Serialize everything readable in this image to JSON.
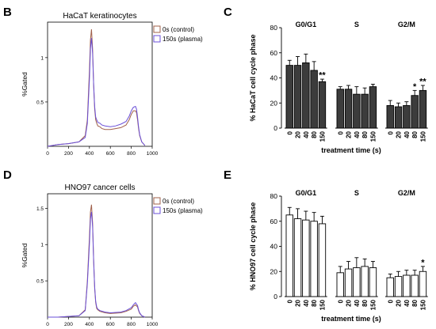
{
  "chart_data": [
    {
      "id": "B",
      "panel_letter": "B",
      "type": "line",
      "title": "HaCaT keratinocytes",
      "ylabel": "%Gated",
      "xlabel": "",
      "xlim": [
        0,
        1000
      ],
      "ylim": [
        0,
        1.4
      ],
      "xticks": [
        0,
        200,
        400,
        600,
        800,
        1000
      ],
      "yticks": [
        0.5,
        1
      ],
      "legend": "top-right",
      "series": [
        {
          "name": "0s (control)",
          "color": "#a0604a",
          "x": [
            0,
            100,
            200,
            300,
            360,
            380,
            400,
            410,
            420,
            430,
            440,
            450,
            460,
            470,
            480,
            500,
            520,
            550,
            600,
            650,
            700,
            750,
            780,
            800,
            820,
            840,
            850,
            860,
            870,
            880,
            900,
            930
          ],
          "y": [
            0,
            0.02,
            0.03,
            0.05,
            0.12,
            0.3,
            0.85,
            1.2,
            1.32,
            1.1,
            0.7,
            0.42,
            0.3,
            0.26,
            0.23,
            0.22,
            0.2,
            0.19,
            0.19,
            0.2,
            0.21,
            0.24,
            0.3,
            0.36,
            0.4,
            0.4,
            0.38,
            0.3,
            0.2,
            0.12,
            0.05,
            0.01
          ]
        },
        {
          "name": "150s (plasma)",
          "color": "#6a4fd8",
          "x": [
            0,
            100,
            200,
            300,
            360,
            380,
            400,
            410,
            420,
            430,
            440,
            450,
            460,
            470,
            480,
            500,
            520,
            550,
            600,
            650,
            700,
            750,
            780,
            800,
            820,
            840,
            850,
            860,
            870,
            880,
            900,
            930
          ],
          "y": [
            0,
            0.02,
            0.03,
            0.05,
            0.1,
            0.26,
            0.75,
            1.1,
            1.22,
            1.05,
            0.7,
            0.45,
            0.33,
            0.3,
            0.27,
            0.26,
            0.24,
            0.23,
            0.22,
            0.23,
            0.25,
            0.28,
            0.34,
            0.4,
            0.44,
            0.45,
            0.42,
            0.33,
            0.22,
            0.13,
            0.05,
            0.01
          ]
        }
      ]
    },
    {
      "id": "C",
      "panel_letter": "C",
      "type": "bar",
      "ylabel": "% HaCaT cell cycle phase",
      "xlabel": "treatment time (s)",
      "ylim": [
        0,
        80
      ],
      "yticks": [
        0,
        20,
        40,
        60,
        80
      ],
      "bar_color": "#3c3c3c",
      "groups": [
        {
          "name": "G0/G1",
          "categories": [
            "0",
            "20",
            "40",
            "80",
            "150"
          ],
          "values": [
            50,
            50,
            52,
            46,
            37
          ],
          "errors": [
            4,
            7,
            7,
            7,
            2
          ],
          "annotations": [
            "",
            "",
            "",
            "",
            "**"
          ]
        },
        {
          "name": "S",
          "categories": [
            "0",
            "20",
            "40",
            "80",
            "150"
          ],
          "values": [
            31,
            31,
            27,
            27,
            33
          ],
          "errors": [
            2,
            3,
            6,
            5,
            2
          ],
          "annotations": [
            "",
            "",
            "",
            "",
            ""
          ]
        },
        {
          "name": "G2/M",
          "categories": [
            "0",
            "20",
            "40",
            "80",
            "150"
          ],
          "values": [
            18,
            17,
            18,
            26,
            30
          ],
          "errors": [
            4,
            3,
            3,
            4,
            4
          ],
          "annotations": [
            "",
            "",
            "",
            "*",
            "**"
          ]
        }
      ]
    },
    {
      "id": "D",
      "panel_letter": "D",
      "type": "line",
      "title": "HNO97 cancer cells",
      "ylabel": "%Gated",
      "xlabel": "",
      "xlim": [
        0,
        1000
      ],
      "ylim": [
        0,
        1.7
      ],
      "xticks": [
        0,
        200,
        400,
        600,
        800,
        1000
      ],
      "yticks": [
        0.5,
        1,
        1.5
      ],
      "legend": "top-right",
      "series": [
        {
          "name": "0s (control)",
          "color": "#a0604a",
          "x": [
            0,
            100,
            200,
            300,
            360,
            380,
            400,
            410,
            420,
            430,
            440,
            450,
            460,
            470,
            480,
            500,
            550,
            600,
            700,
            750,
            800,
            820,
            840,
            860,
            870,
            880,
            900,
            930
          ],
          "y": [
            0,
            0,
            0.01,
            0.02,
            0.1,
            0.5,
            1.1,
            1.45,
            1.55,
            1.3,
            0.8,
            0.4,
            0.2,
            0.12,
            0.1,
            0.08,
            0.06,
            0.05,
            0.06,
            0.08,
            0.11,
            0.15,
            0.17,
            0.14,
            0.09,
            0.05,
            0.02,
            0
          ]
        },
        {
          "name": "150s (plasma)",
          "color": "#6a4fd8",
          "x": [
            0,
            100,
            200,
            300,
            360,
            380,
            400,
            410,
            420,
            430,
            440,
            450,
            460,
            470,
            480,
            500,
            550,
            600,
            700,
            750,
            800,
            820,
            840,
            860,
            870,
            880,
            900,
            930
          ],
          "y": [
            0,
            0,
            0.01,
            0.02,
            0.09,
            0.46,
            1.0,
            1.35,
            1.45,
            1.25,
            0.78,
            0.42,
            0.22,
            0.14,
            0.11,
            0.09,
            0.07,
            0.06,
            0.07,
            0.09,
            0.13,
            0.17,
            0.2,
            0.16,
            0.1,
            0.06,
            0.02,
            0
          ]
        }
      ]
    },
    {
      "id": "E",
      "panel_letter": "E",
      "type": "bar",
      "ylabel": "% HNO97 cell cycle phase",
      "xlabel": "treatment time (s)",
      "ylim": [
        0,
        80
      ],
      "yticks": [
        0,
        20,
        40,
        60,
        80
      ],
      "bar_color": "#ffffff",
      "groups": [
        {
          "name": "G0/G1",
          "categories": [
            "0",
            "20",
            "40",
            "80",
            "150"
          ],
          "values": [
            65,
            62,
            61,
            60,
            58
          ],
          "errors": [
            6,
            8,
            7,
            7,
            6
          ],
          "annotations": [
            "",
            "",
            "",
            "",
            ""
          ]
        },
        {
          "name": "S",
          "categories": [
            "0",
            "20",
            "40",
            "80",
            "150"
          ],
          "values": [
            19,
            22,
            23,
            24,
            23
          ],
          "errors": [
            5,
            6,
            8,
            6,
            5
          ],
          "annotations": [
            "",
            "",
            "",
            "",
            ""
          ]
        },
        {
          "name": "G2/M",
          "categories": [
            "0",
            "20",
            "40",
            "80",
            "150"
          ],
          "values": [
            15,
            16,
            17,
            17,
            20
          ],
          "errors": [
            3,
            4,
            4,
            4,
            4
          ],
          "annotations": [
            "",
            "",
            "",
            "",
            "*"
          ]
        }
      ]
    }
  ]
}
